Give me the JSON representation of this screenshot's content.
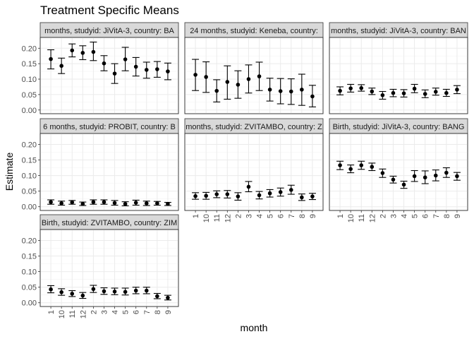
{
  "chart_data": {
    "type": "scatter",
    "title": "Treatment Specific Means",
    "xlabel": "month",
    "ylabel": "Estimate",
    "categories": [
      "1",
      "10",
      "11",
      "12",
      "2",
      "3",
      "4",
      "5",
      "6",
      "7",
      "8",
      "9"
    ],
    "ylim": [
      -0.012,
      0.235
    ],
    "yticks": [
      0.0,
      0.05,
      0.1,
      0.15,
      0.2
    ],
    "ytick_labels": [
      "0.00",
      "0.05",
      "0.10",
      "0.15",
      "0.20"
    ],
    "grid": true,
    "facets": [
      {
        "strip": "months, studyid: JiVitA-3, country: BA",
        "estimate": [
          0.165,
          0.143,
          0.193,
          0.185,
          0.188,
          0.151,
          0.118,
          0.164,
          0.14,
          0.13,
          0.132,
          0.125
        ],
        "lower": [
          0.133,
          0.118,
          0.172,
          0.163,
          0.16,
          0.127,
          0.086,
          0.127,
          0.11,
          0.103,
          0.106,
          0.098
        ],
        "upper": [
          0.195,
          0.168,
          0.214,
          0.208,
          0.22,
          0.176,
          0.15,
          0.203,
          0.17,
          0.155,
          0.157,
          0.152
        ]
      },
      {
        "strip": "24 months, studyid: Keneba, country:",
        "estimate": [
          0.114,
          0.107,
          0.062,
          0.091,
          0.082,
          0.1,
          0.109,
          0.066,
          0.061,
          0.06,
          0.066,
          0.044
        ],
        "lower": [
          0.063,
          0.057,
          0.026,
          0.035,
          0.038,
          0.055,
          0.063,
          0.029,
          0.02,
          0.018,
          0.015,
          0.01
        ],
        "upper": [
          0.164,
          0.156,
          0.098,
          0.143,
          0.127,
          0.146,
          0.155,
          0.103,
          0.102,
          0.101,
          0.116,
          0.08
        ]
      },
      {
        "strip": "months, studyid: JiVitA-3, country: BAN",
        "estimate": [
          0.062,
          0.07,
          0.071,
          0.06,
          0.048,
          0.055,
          0.054,
          0.069,
          0.052,
          0.059,
          0.055,
          0.066
        ],
        "lower": [
          0.049,
          0.058,
          0.061,
          0.05,
          0.035,
          0.043,
          0.042,
          0.056,
          0.04,
          0.048,
          0.044,
          0.053
        ],
        "upper": [
          0.075,
          0.083,
          0.082,
          0.071,
          0.06,
          0.067,
          0.066,
          0.083,
          0.065,
          0.071,
          0.067,
          0.079
        ]
      },
      {
        "strip": "6 months, studyid: PROBIT, country: B",
        "estimate": [
          0.015,
          0.011,
          0.014,
          0.009,
          0.015,
          0.015,
          0.012,
          0.009,
          0.013,
          0.011,
          0.011,
          0.009
        ],
        "lower": [
          0.008,
          0.005,
          0.008,
          0.004,
          0.008,
          0.008,
          0.005,
          0.003,
          0.005,
          0.004,
          0.005,
          0.004
        ],
        "upper": [
          0.022,
          0.018,
          0.02,
          0.015,
          0.022,
          0.022,
          0.02,
          0.016,
          0.021,
          0.018,
          0.017,
          0.014
        ]
      },
      {
        "strip": "months, studyid: ZVITAMBO, country: Z",
        "estimate": [
          0.034,
          0.035,
          0.04,
          0.04,
          0.033,
          0.064,
          0.037,
          0.043,
          0.047,
          0.054,
          0.03,
          0.033
        ],
        "lower": [
          0.024,
          0.024,
          0.029,
          0.028,
          0.021,
          0.048,
          0.025,
          0.031,
          0.034,
          0.04,
          0.02,
          0.023
        ],
        "upper": [
          0.045,
          0.046,
          0.051,
          0.052,
          0.045,
          0.081,
          0.049,
          0.055,
          0.06,
          0.069,
          0.041,
          0.043
        ]
      },
      {
        "strip": "Birth, studyid: JiVitA-3, country: BANG",
        "estimate": [
          0.133,
          0.121,
          0.133,
          0.128,
          0.108,
          0.087,
          0.071,
          0.098,
          0.094,
          0.1,
          0.109,
          0.098
        ],
        "lower": [
          0.119,
          0.109,
          0.12,
          0.116,
          0.094,
          0.076,
          0.059,
          0.081,
          0.074,
          0.083,
          0.094,
          0.085
        ],
        "upper": [
          0.146,
          0.134,
          0.146,
          0.14,
          0.121,
          0.098,
          0.082,
          0.116,
          0.115,
          0.118,
          0.125,
          0.11
        ]
      },
      {
        "strip": "Birth, studyid: ZVITAMBO, country: ZIM",
        "estimate": [
          0.043,
          0.034,
          0.029,
          0.023,
          0.044,
          0.037,
          0.036,
          0.035,
          0.039,
          0.039,
          0.021,
          0.016
        ],
        "lower": [
          0.032,
          0.024,
          0.02,
          0.014,
          0.033,
          0.027,
          0.026,
          0.025,
          0.029,
          0.029,
          0.013,
          0.009
        ],
        "upper": [
          0.055,
          0.045,
          0.039,
          0.033,
          0.056,
          0.048,
          0.047,
          0.047,
          0.05,
          0.05,
          0.03,
          0.024
        ]
      }
    ]
  }
}
